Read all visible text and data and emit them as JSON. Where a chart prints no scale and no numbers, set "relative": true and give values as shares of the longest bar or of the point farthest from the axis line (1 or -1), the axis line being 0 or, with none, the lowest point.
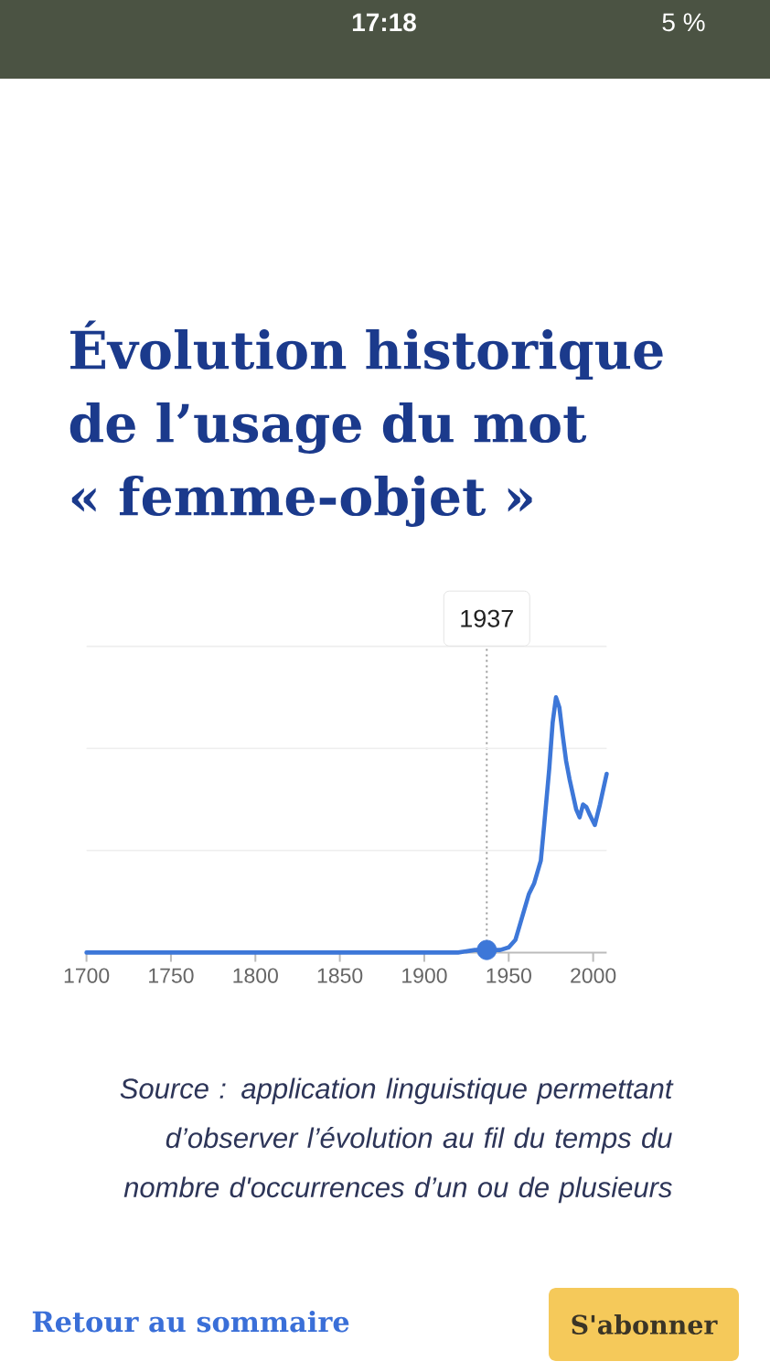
{
  "chart_data": {
    "type": "line",
    "title": "Évolution historique de l’usage du mot « femme-objet »",
    "xlim": [
      1700,
      2008
    ],
    "xticks": [
      1700,
      1750,
      1800,
      1850,
      1900,
      1950,
      2000
    ],
    "relative": true,
    "tick_labels": "x",
    "series": [
      {
        "color": "#3d77d8",
        "x": [
          1700,
          1750,
          1800,
          1850,
          1900,
          1920,
          1930,
          1937,
          1945,
          1950,
          1954,
          1958,
          1962,
          1965,
          1969,
          1971,
          1974,
          1976,
          1978,
          1980,
          1982,
          1984,
          1986,
          1988,
          1990,
          1992,
          1994,
          1996,
          1998,
          2001,
          2004,
          2008
        ],
        "values": [
          0,
          0,
          0,
          0,
          0,
          0,
          0.01,
          0.01,
          0.01,
          0.02,
          0.05,
          0.14,
          0.23,
          0.27,
          0.36,
          0.5,
          0.72,
          0.9,
          1,
          0.96,
          0.85,
          0.75,
          0.68,
          0.62,
          0.56,
          0.53,
          0.58,
          0.57,
          0.54,
          0.5,
          0.58,
          0.7
        ]
      },
      {
        "type": "scatter",
        "color": "#3d77d8",
        "marker": "circle",
        "x": [
          1937
        ],
        "values": [
          0.01
        ]
      }
    ],
    "ref_lines": [
      {
        "axis": "x",
        "value": 1937,
        "label": "1937",
        "color": "#9a9a9a",
        "line_style": "dotted"
      },
      {
        "axis": "y",
        "value": 0.4,
        "color": "#eeeeee"
      },
      {
        "axis": "y",
        "value": 0.8,
        "color": "#eeeeee"
      }
    ],
    "annotations": [
      "17:18",
      "5 %",
      "Source : application linguistique permettant d’observer l’évolution au fil du temps du nombre d'occurrences d’un ou de plusieurs",
      "Retour au sommaire",
      "S'abonner"
    ]
  }
}
